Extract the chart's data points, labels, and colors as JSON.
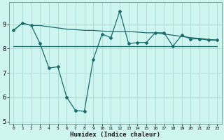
{
  "xlabel": "Humidex (Indice chaleur)",
  "ylabel": "",
  "bg_color": "#cef5f0",
  "line_color": "#1a6b6b",
  "grid_color": "#b0ddd8",
  "xlim": [
    -0.5,
    23.5
  ],
  "ylim": [
    4.9,
    9.9
  ],
  "xticks": [
    0,
    1,
    2,
    3,
    4,
    5,
    6,
    7,
    8,
    9,
    10,
    11,
    12,
    13,
    14,
    15,
    16,
    17,
    18,
    19,
    20,
    21,
    22,
    23
  ],
  "yticks": [
    5,
    6,
    7,
    8,
    9
  ],
  "line1_x": [
    0,
    1,
    2,
    3,
    4,
    5,
    6,
    7,
    8,
    9,
    10,
    11,
    12,
    13,
    14,
    15,
    16,
    17,
    18,
    19,
    20,
    21,
    22,
    23
  ],
  "line1_y": [
    8.75,
    9.05,
    8.95,
    8.2,
    7.2,
    7.25,
    6.0,
    5.45,
    5.42,
    7.55,
    8.6,
    8.45,
    9.55,
    8.2,
    8.25,
    8.25,
    8.65,
    8.65,
    8.1,
    8.55,
    8.4,
    8.4,
    8.35,
    8.35
  ],
  "line2_x": [
    0,
    1,
    2,
    3,
    4,
    5,
    6,
    7,
    8,
    9,
    10,
    11,
    12,
    13,
    14,
    15,
    16,
    17,
    18,
    19,
    20,
    21,
    22,
    23
  ],
  "line2_y": [
    8.75,
    9.05,
    8.95,
    8.95,
    8.9,
    8.85,
    8.8,
    8.78,
    8.75,
    8.75,
    8.72,
    8.7,
    8.7,
    8.7,
    8.68,
    8.65,
    8.65,
    8.6,
    8.55,
    8.5,
    8.45,
    8.42,
    8.38,
    8.35
  ],
  "line3_x": [
    0,
    1,
    2,
    3,
    4,
    5,
    6,
    7,
    8,
    9,
    10,
    11,
    12,
    13,
    14,
    15,
    16,
    17,
    18,
    19,
    20,
    21,
    22,
    23
  ],
  "line3_y": [
    8.1,
    8.1,
    8.1,
    8.1,
    8.1,
    8.1,
    8.1,
    8.1,
    8.1,
    8.1,
    8.1,
    8.1,
    8.1,
    8.1,
    8.1,
    8.1,
    8.1,
    8.1,
    8.1,
    8.1,
    8.1,
    8.1,
    8.1,
    8.1
  ]
}
